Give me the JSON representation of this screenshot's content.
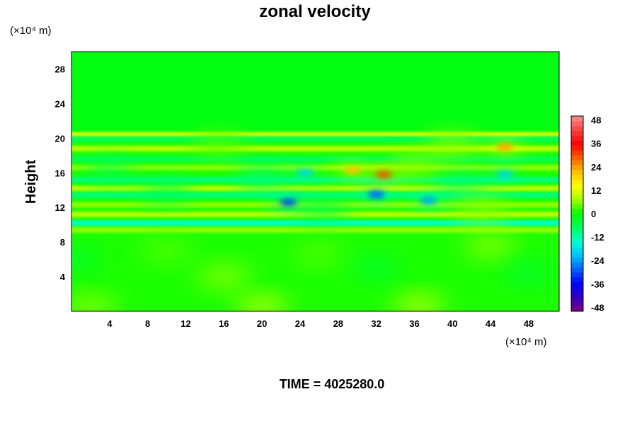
{
  "chart_data": {
    "type": "heatmap",
    "title": "zonal velocity",
    "xlabel": "",
    "ylabel": "Height",
    "x_unit": "(×10⁴ m)",
    "y_unit": "(×10⁴ m)",
    "xlim": [
      0,
      51.2
    ],
    "ylim": [
      0,
      30
    ],
    "x_ticks": [
      4,
      8,
      12,
      16,
      20,
      24,
      28,
      32,
      36,
      40,
      44,
      48
    ],
    "y_ticks": [
      4,
      8,
      12,
      16,
      20,
      24,
      28
    ],
    "colorbar": {
      "ticks": [
        48,
        36,
        24,
        12,
        0,
        -12,
        -24,
        -36,
        -48
      ],
      "range": [
        -50,
        50
      ],
      "levels": 40
    },
    "colormap": [
      "#800080",
      "#3000c0",
      "#0000ff",
      "#0060ff",
      "#00c0ff",
      "#00ffd0",
      "#00ff60",
      "#00ff00",
      "#a0ff00",
      "#ffff00",
      "#ffc000",
      "#ff6000",
      "#ff0000",
      "#ff4040",
      "#ff9090"
    ],
    "regions": [
      {
        "y": [
          20.2,
          30
        ],
        "value": -1
      },
      {
        "y": [
          0,
          9.5
        ],
        "value": 0
      }
    ],
    "bands": [
      {
        "y": 20.4,
        "value": 10
      },
      {
        "y": 19.9,
        "value": -6
      },
      {
        "y": 18.8,
        "value": 9
      },
      {
        "y": 17.6,
        "value": -7
      },
      {
        "y": 16.6,
        "value": 7
      },
      {
        "y": 15.2,
        "value": -10
      },
      {
        "y": 14.2,
        "value": 9
      },
      {
        "y": 13.4,
        "value": -9
      },
      {
        "y": 12.3,
        "value": 5
      },
      {
        "y": 11.2,
        "value": 8
      },
      {
        "y": 10.2,
        "value": -14
      },
      {
        "y": 9.4,
        "value": 5
      }
    ],
    "features": [
      {
        "x": 32.8,
        "y": 15.8,
        "value": 32
      },
      {
        "x": 29.5,
        "y": 16.3,
        "value": 20
      },
      {
        "x": 36.0,
        "y": 16.8,
        "value": 12
      },
      {
        "x": 45.5,
        "y": 19.0,
        "value": 24
      },
      {
        "x": 40.0,
        "y": 19.2,
        "value": 10
      },
      {
        "x": 15.5,
        "y": 19.3,
        "value": 9
      },
      {
        "x": 22.8,
        "y": 12.6,
        "value": -32
      },
      {
        "x": 32.0,
        "y": 13.5,
        "value": -30
      },
      {
        "x": 37.5,
        "y": 12.8,
        "value": -24
      },
      {
        "x": 24.5,
        "y": 16.0,
        "value": -20
      },
      {
        "x": 20.0,
        "y": 15.5,
        "value": -16
      },
      {
        "x": 45.5,
        "y": 15.8,
        "value": -20
      },
      {
        "x": 26.5,
        "y": 12.0,
        "value": -12
      },
      {
        "x": 10.0,
        "y": 14.0,
        "value": -12
      },
      {
        "x": 4.0,
        "y": 16.2,
        "value": -10
      },
      {
        "x": 41.0,
        "y": 14.5,
        "value": -14
      },
      {
        "x": 43.0,
        "y": 11.8,
        "value": 10
      },
      {
        "x": 20.0,
        "y": 0.5,
        "value": 14
      },
      {
        "x": 36.5,
        "y": 0.6,
        "value": 14
      },
      {
        "x": 2.0,
        "y": 0.5,
        "value": 10
      },
      {
        "x": 44.0,
        "y": 7.5,
        "value": 10
      },
      {
        "x": 10.0,
        "y": 7.0,
        "value": 8
      },
      {
        "x": 26.0,
        "y": 6.5,
        "value": 8
      },
      {
        "x": 16.0,
        "y": 4.0,
        "value": 10
      },
      {
        "x": 32.0,
        "y": 5.0,
        "value": -6
      },
      {
        "x": 48.0,
        "y": 4.5,
        "value": -5
      },
      {
        "x": 0.5,
        "y": 6.0,
        "value": -5
      }
    ]
  },
  "time_label": "TIME = 4025280.0"
}
